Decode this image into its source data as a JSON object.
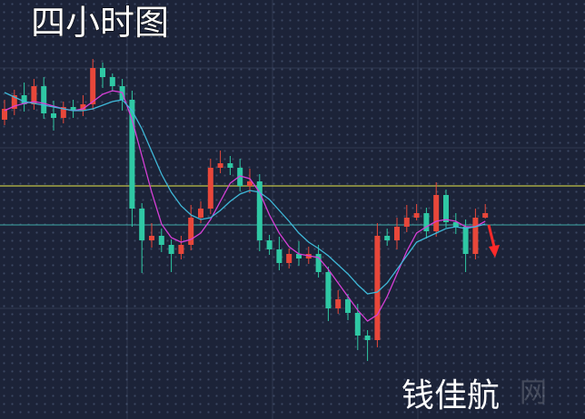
{
  "chart_data": {
    "type": "candlestick",
    "title": "四小时图",
    "watermark": "钱佳航",
    "site_mark": "网",
    "ylim": [
      0,
      462
    ],
    "up_color": "#e8473a",
    "down_color": "#2fc8a4",
    "open": [
      330,
      342,
      357,
      347,
      367,
      337,
      332,
      344,
      340,
      347,
      387,
      377,
      367,
      352,
      232,
      197,
      202,
      192,
      182,
      192,
      222,
      232,
      277,
      282,
      277,
      257,
      262,
      197,
      187,
      172,
      182,
      177,
      182,
      162,
      122,
      132,
      117,
      92,
      87,
      202,
      197,
      212,
      222,
      227,
      207,
      247,
      217,
      212,
      182,
      222
    ],
    "high": [
      352,
      363,
      371,
      375,
      377,
      351,
      350,
      352,
      357,
      397,
      393,
      381,
      375,
      362,
      238,
      216,
      210,
      198,
      202,
      236,
      240,
      287,
      296,
      290,
      287,
      276,
      270,
      203,
      201,
      188,
      196,
      190,
      192,
      168,
      142,
      138,
      127,
      98,
      216,
      210,
      222,
      236,
      237,
      233,
      261,
      253,
      227,
      220,
      232,
      237
    ],
    "low": [
      324,
      335,
      339,
      341,
      331,
      318,
      326,
      332,
      334,
      341,
      365,
      361,
      340,
      212,
      161,
      189,
      184,
      162,
      176,
      186,
      216,
      226,
      271,
      269,
      251,
      249,
      185,
      181,
      164,
      166,
      169,
      171,
      156,
      108,
      116,
      109,
      76,
      64,
      79,
      191,
      187,
      206,
      219,
      199,
      201,
      211,
      204,
      162,
      176,
      221
    ],
    "close": [
      342,
      357,
      347,
      367,
      337,
      332,
      344,
      340,
      347,
      387,
      377,
      367,
      352,
      232,
      197,
      202,
      192,
      182,
      192,
      222,
      232,
      277,
      282,
      277,
      257,
      262,
      197,
      187,
      172,
      182,
      177,
      182,
      162,
      122,
      132,
      117,
      92,
      87,
      202,
      197,
      212,
      222,
      227,
      207,
      247,
      217,
      212,
      182,
      222,
      227
    ],
    "series": [
      {
        "color": "#d63fd6",
        "values": [
          340,
          345,
          348,
          350,
          348,
          345,
          342,
          340,
          342,
          350,
          358,
          362,
          360,
          330,
          290,
          250,
          215,
          200,
          195,
          198,
          205,
          220,
          240,
          260,
          268,
          265,
          250,
          225,
          205,
          190,
          182,
          180,
          178,
          165,
          150,
          135,
          120,
          108,
          115,
          135,
          160,
          185,
          205,
          212,
          218,
          220,
          218,
          212,
          212,
          218
        ]
      },
      {
        "color": "#3fb8d8",
        "values": [
          360,
          355,
          350,
          348,
          346,
          344,
          342,
          340,
          340,
          342,
          346,
          350,
          352,
          340,
          320,
          295,
          270,
          250,
          235,
          225,
          220,
          222,
          230,
          240,
          248,
          252,
          250,
          242,
          230,
          218,
          205,
          195,
          188,
          180,
          170,
          160,
          148,
          138,
          140,
          150,
          165,
          180,
          195,
          200,
          205,
          210,
          212,
          210,
          212,
          215
        ]
      }
    ],
    "levels": [
      {
        "value": 257,
        "color": "#e8e84a"
      },
      {
        "value": 214,
        "color": "#3fa8a8"
      }
    ]
  }
}
